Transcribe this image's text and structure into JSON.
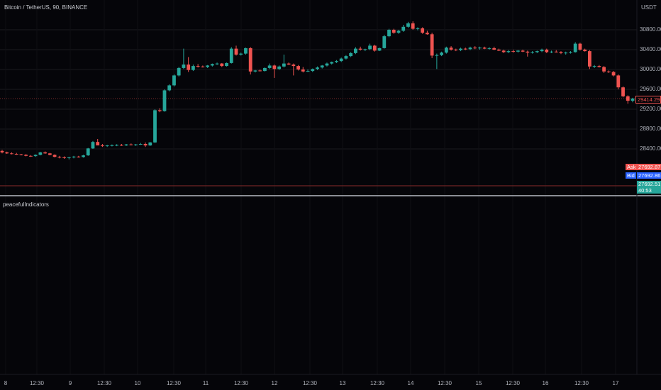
{
  "title": "Bitcoin / TetherUS, 90, BINANCE",
  "unit": "USDT",
  "indicator_label": "peacefulIndicators",
  "price_tags": {
    "last_price": "29414.29",
    "ask_label": "Ask",
    "ask_value": "27692.87",
    "bid_label": "Bid",
    "bid_value": "27692.86",
    "current_value": "27692.51",
    "countdown": "40:53"
  },
  "colors": {
    "bg": "#050509",
    "up": "#26a69a",
    "down": "#ef5350",
    "grid": "#1a1a1f",
    "ask": "#ef5350",
    "bid": "#2962ff",
    "current": "#26a69a"
  },
  "chart_data": {
    "type": "candlestick",
    "title": "Bitcoin / TetherUS, 90, BINANCE",
    "y_tick_labels": [
      "30800.00",
      "30400.00",
      "30000.00",
      "29600.00",
      "29200.00",
      "28800.00",
      "28400.00"
    ],
    "y_ticks": [
      30800,
      30400,
      30000,
      29600,
      29200,
      28800,
      28400
    ],
    "x_tick_labels": [
      "8",
      "12:30",
      "9",
      "12:30",
      "10",
      "12:30",
      "11",
      "12:30",
      "12",
      "12:30",
      "13",
      "12:30",
      "14",
      "12:30",
      "15",
      "12:30",
      "16",
      "12:30",
      "17"
    ],
    "ylim": [
      27680,
      31100
    ],
    "grid": true,
    "candles_ohlc": [
      [
        28360,
        28380,
        28310,
        28330
      ],
      [
        28330,
        28345,
        28300,
        28310
      ],
      [
        28310,
        28330,
        28290,
        28300
      ],
      [
        28300,
        28320,
        28280,
        28290
      ],
      [
        28290,
        28300,
        28270,
        28280
      ],
      [
        28280,
        28295,
        28250,
        28260
      ],
      [
        28260,
        28275,
        28240,
        28255
      ],
      [
        28255,
        28290,
        28240,
        28280
      ],
      [
        28280,
        28340,
        28270,
        28330
      ],
      [
        28330,
        28350,
        28300,
        28310
      ],
      [
        28310,
        28320,
        28270,
        28280
      ],
      [
        28280,
        28290,
        28230,
        28240
      ],
      [
        28240,
        28260,
        28210,
        28230
      ],
      [
        28230,
        28250,
        28200,
        28220
      ],
      [
        28220,
        28240,
        28190,
        28230
      ],
      [
        28230,
        28260,
        28210,
        28245
      ],
      [
        28245,
        28260,
        28225,
        28235
      ],
      [
        28235,
        28280,
        28225,
        28270
      ],
      [
        28270,
        28420,
        28260,
        28410
      ],
      [
        28410,
        28560,
        28400,
        28540
      ],
      [
        28540,
        28600,
        28510,
        28470
      ],
      [
        28470,
        28500,
        28440,
        28460
      ],
      [
        28460,
        28480,
        28440,
        28470
      ],
      [
        28470,
        28490,
        28450,
        28475
      ],
      [
        28475,
        28495,
        28455,
        28480
      ],
      [
        28480,
        28500,
        28460,
        28470
      ],
      [
        28470,
        28500,
        28460,
        28490
      ],
      [
        28490,
        28510,
        28470,
        28480
      ],
      [
        28480,
        28500,
        28460,
        28490
      ],
      [
        28490,
        28520,
        28480,
        28500
      ],
      [
        28500,
        28530,
        28440,
        28470
      ],
      [
        28470,
        28540,
        28460,
        28530
      ],
      [
        28530,
        29200,
        28520,
        29180
      ],
      [
        29180,
        29220,
        29140,
        29160
      ],
      [
        29160,
        29600,
        29150,
        29580
      ],
      [
        29580,
        29700,
        29560,
        29680
      ],
      [
        29680,
        29900,
        29660,
        29880
      ],
      [
        29880,
        30050,
        29860,
        30030
      ],
      [
        30030,
        30420,
        30010,
        30100
      ],
      [
        30100,
        30250,
        29950,
        29990
      ],
      [
        29990,
        30100,
        29970,
        30070
      ],
      [
        30070,
        30110,
        30040,
        30060
      ],
      [
        30060,
        30080,
        30040,
        30050
      ],
      [
        30050,
        30090,
        30030,
        30080
      ],
      [
        30080,
        30120,
        30060,
        30110
      ],
      [
        30110,
        30140,
        30090,
        30120
      ],
      [
        30120,
        30130,
        30050,
        30070
      ],
      [
        30070,
        30140,
        30060,
        30130
      ],
      [
        30130,
        30450,
        30120,
        30420
      ],
      [
        30420,
        30480,
        30280,
        30300
      ],
      [
        30300,
        30340,
        30280,
        30320
      ],
      [
        30320,
        30440,
        30300,
        30430
      ],
      [
        30430,
        30450,
        29900,
        29960
      ],
      [
        29960,
        29990,
        29940,
        29980
      ],
      [
        29980,
        30000,
        29960,
        29970
      ],
      [
        29970,
        30040,
        29960,
        30030
      ],
      [
        30030,
        30120,
        30010,
        30080
      ],
      [
        30080,
        30100,
        29830,
        30010
      ],
      [
        30010,
        30080,
        29990,
        30060
      ],
      [
        30060,
        30300,
        30040,
        30120
      ],
      [
        30120,
        30140,
        30090,
        30100
      ],
      [
        30100,
        30120,
        29880,
        30070
      ],
      [
        30070,
        30090,
        29980,
        30000
      ],
      [
        30000,
        30050,
        29940,
        29960
      ],
      [
        29960,
        30000,
        29950,
        29970
      ],
      [
        29970,
        30020,
        29950,
        30010
      ],
      [
        30010,
        30060,
        29990,
        30040
      ],
      [
        30040,
        30090,
        30020,
        30080
      ],
      [
        30080,
        30140,
        30060,
        30120
      ],
      [
        30120,
        30160,
        30100,
        30150
      ],
      [
        30150,
        30190,
        30130,
        30170
      ],
      [
        30170,
        30240,
        30150,
        30220
      ],
      [
        30220,
        30290,
        30200,
        30270
      ],
      [
        30270,
        30350,
        30250,
        30330
      ],
      [
        30330,
        30450,
        30310,
        30420
      ],
      [
        30420,
        30460,
        30380,
        30400
      ],
      [
        30400,
        30420,
        30370,
        30410
      ],
      [
        30410,
        30520,
        30390,
        30480
      ],
      [
        30480,
        30500,
        30360,
        30380
      ],
      [
        30380,
        30440,
        30370,
        30430
      ],
      [
        30430,
        30700,
        30420,
        30670
      ],
      [
        30670,
        30820,
        30650,
        30800
      ],
      [
        30800,
        30820,
        30720,
        30740
      ],
      [
        30740,
        30800,
        30720,
        30780
      ],
      [
        30780,
        30900,
        30760,
        30860
      ],
      [
        30860,
        30960,
        30840,
        30930
      ],
      [
        30930,
        30970,
        30800,
        30820
      ],
      [
        30820,
        30850,
        30790,
        30830
      ],
      [
        30830,
        30850,
        30720,
        30740
      ],
      [
        30740,
        30780,
        30700,
        30710
      ],
      [
        30710,
        30740,
        30230,
        30280
      ],
      [
        30280,
        30320,
        30010,
        30290
      ],
      [
        30290,
        30360,
        30270,
        30340
      ],
      [
        30340,
        30460,
        30320,
        30440
      ],
      [
        30440,
        30470,
        30380,
        30400
      ],
      [
        30400,
        30420,
        30370,
        30390
      ],
      [
        30390,
        30440,
        30370,
        30420
      ],
      [
        30420,
        30440,
        30390,
        30410
      ],
      [
        30410,
        30460,
        30390,
        30440
      ],
      [
        30440,
        30470,
        30410,
        30430
      ],
      [
        30430,
        30460,
        30400,
        30440
      ],
      [
        30440,
        30460,
        30410,
        30420
      ],
      [
        30420,
        30450,
        30400,
        30430
      ],
      [
        30430,
        30460,
        30390,
        30400
      ],
      [
        30400,
        30420,
        30370,
        30380
      ],
      [
        30380,
        30400,
        30330,
        30350
      ],
      [
        30350,
        30390,
        30330,
        30370
      ],
      [
        30370,
        30400,
        30340,
        30360
      ],
      [
        30360,
        30390,
        30340,
        30380
      ],
      [
        30380,
        30400,
        30350,
        30360
      ],
      [
        30360,
        30380,
        30260,
        30340
      ],
      [
        30340,
        30370,
        30320,
        30350
      ],
      [
        30350,
        30380,
        30330,
        30370
      ],
      [
        30370,
        30420,
        30350,
        30400
      ],
      [
        30400,
        30420,
        30330,
        30350
      ],
      [
        30350,
        30380,
        30330,
        30360
      ],
      [
        30360,
        30390,
        30340,
        30350
      ],
      [
        30350,
        30370,
        30310,
        30330
      ],
      [
        30330,
        30360,
        30300,
        30340
      ],
      [
        30340,
        30370,
        30320,
        30350
      ],
      [
        30350,
        30550,
        30340,
        30520
      ],
      [
        30520,
        30540,
        30380,
        30400
      ],
      [
        30400,
        30420,
        30360,
        30370
      ],
      [
        30370,
        30390,
        30010,
        30060
      ],
      [
        30060,
        30090,
        30030,
        30070
      ],
      [
        30070,
        30090,
        30040,
        30050
      ],
      [
        30050,
        30070,
        29930,
        29960
      ],
      [
        29960,
        29980,
        29930,
        29950
      ],
      [
        29950,
        29970,
        29860,
        29880
      ],
      [
        29880,
        29900,
        29600,
        29640
      ],
      [
        29640,
        29660,
        29440,
        29460
      ],
      [
        29460,
        29480,
        29310,
        29370
      ],
      [
        29370,
        29430,
        29340,
        29414.29
      ]
    ]
  }
}
